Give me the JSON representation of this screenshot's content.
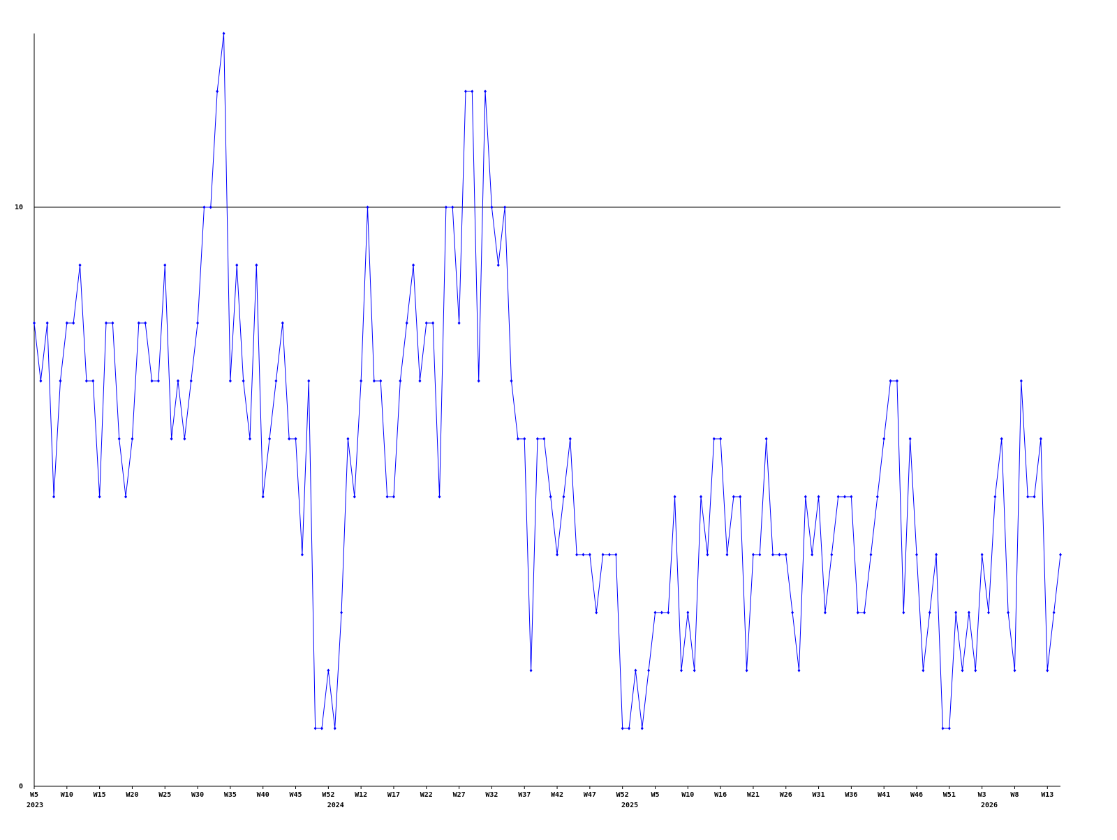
{
  "chart_data": {
    "type": "line",
    "categories": [
      "W5",
      null,
      null,
      null,
      null,
      "W10",
      null,
      null,
      null,
      null,
      "W15",
      null,
      null,
      null,
      null,
      "W20",
      null,
      null,
      null,
      null,
      "W25",
      null,
      null,
      null,
      null,
      "W30",
      null,
      null,
      null,
      null,
      "W35",
      null,
      null,
      null,
      null,
      "W40",
      null,
      null,
      null,
      null,
      "W45",
      null,
      null,
      null,
      null,
      "W52",
      null,
      null,
      null,
      null,
      "W12",
      null,
      null,
      null,
      null,
      "W17",
      null,
      null,
      null,
      null,
      "W22",
      null,
      null,
      null,
      null,
      "W27",
      null,
      null,
      null,
      null,
      "W32",
      null,
      null,
      null,
      null,
      "W37",
      null,
      null,
      null,
      null,
      "W42",
      null,
      null,
      null,
      null,
      "W47",
      null,
      null,
      null,
      null,
      "W52",
      null,
      null,
      null,
      null,
      "W5",
      null,
      null,
      null,
      null,
      "W10",
      null,
      null,
      null,
      null,
      "W16",
      null,
      null,
      null,
      null,
      "W21",
      null,
      null,
      null,
      null,
      "W26",
      null,
      null,
      null,
      null,
      "W31",
      null,
      null,
      null,
      null,
      "W36",
      null,
      null,
      null,
      null,
      "W41",
      null,
      null,
      null,
      null,
      "W46",
      null,
      null,
      null,
      null,
      "W51",
      null,
      null,
      null,
      null,
      "W3",
      null,
      null,
      null,
      null,
      "W8",
      null,
      null,
      null,
      null,
      "W13",
      null,
      null
    ],
    "year_labels": [
      "2023",
      null,
      null,
      null,
      null,
      null,
      null,
      null,
      null,
      null,
      null,
      null,
      null,
      null,
      null,
      null,
      null,
      null,
      null,
      null,
      null,
      null,
      null,
      null,
      null,
      null,
      null,
      null,
      null,
      null,
      null,
      null,
      null,
      null,
      null,
      null,
      null,
      null,
      null,
      null,
      null,
      null,
      null,
      null,
      null,
      null,
      "2024",
      null,
      null,
      null,
      null,
      null,
      null,
      null,
      null,
      null,
      null,
      null,
      null,
      null,
      null,
      null,
      null,
      null,
      null,
      null,
      null,
      null,
      null,
      null,
      null,
      null,
      null,
      null,
      null,
      null,
      null,
      null,
      null,
      null,
      null,
      null,
      null,
      null,
      null,
      null,
      null,
      null,
      null,
      null,
      null,
      "2025",
      null,
      null,
      null,
      null,
      null,
      null,
      null,
      null,
      null,
      null,
      null,
      null,
      null,
      null,
      null,
      null,
      null,
      null,
      null,
      null,
      null,
      null,
      null,
      null,
      null,
      null,
      null,
      null,
      null,
      null,
      null,
      null,
      null,
      null,
      null,
      null,
      null,
      null,
      null,
      null,
      null,
      null,
      null,
      null,
      null,
      null,
      null,
      null,
      null,
      null,
      null,
      null,
      null,
      null,
      "2026",
      null,
      null,
      null,
      null,
      null,
      null,
      null,
      null,
      null,
      null,
      null,
      null,
      null,
      null,
      null
    ],
    "series": [
      {
        "color": "#0000ff",
        "values": [
          8,
          7,
          8,
          5,
          7,
          8,
          8,
          9,
          7,
          7,
          5,
          8,
          8,
          6,
          5,
          6,
          8,
          8,
          7,
          7,
          9,
          6,
          7,
          6,
          7,
          8,
          10,
          10,
          12,
          13,
          7,
          9,
          7,
          6,
          9,
          5,
          6,
          7,
          8,
          6,
          6,
          4,
          7,
          1,
          1,
          2,
          1,
          3,
          6,
          5,
          7,
          10,
          7,
          7,
          5,
          5,
          7,
          8,
          9,
          7,
          8,
          8,
          5,
          10,
          10,
          8,
          12,
          12,
          7,
          12,
          10,
          9,
          10,
          7,
          6,
          6,
          2,
          6,
          6,
          5,
          4,
          5,
          6,
          4,
          4,
          4,
          3,
          4,
          4,
          4,
          1,
          1,
          2,
          1,
          2,
          3,
          3,
          3,
          5,
          2,
          3,
          2,
          5,
          4,
          6,
          6,
          4,
          5,
          5,
          2,
          4,
          4,
          6,
          4,
          4,
          4,
          3,
          2,
          5,
          4,
          5,
          3,
          4,
          5,
          5,
          5,
          3,
          3,
          4,
          5,
          6,
          7,
          7,
          3,
          6,
          4,
          2,
          3,
          4,
          1,
          1,
          3,
          2,
          3,
          2,
          4,
          3,
          5,
          6,
          3,
          2,
          7,
          5,
          5,
          6,
          2,
          3,
          4
        ]
      }
    ],
    "ylim": [
      0,
      13
    ],
    "yticks": [
      0,
      10
    ],
    "grid": true
  }
}
